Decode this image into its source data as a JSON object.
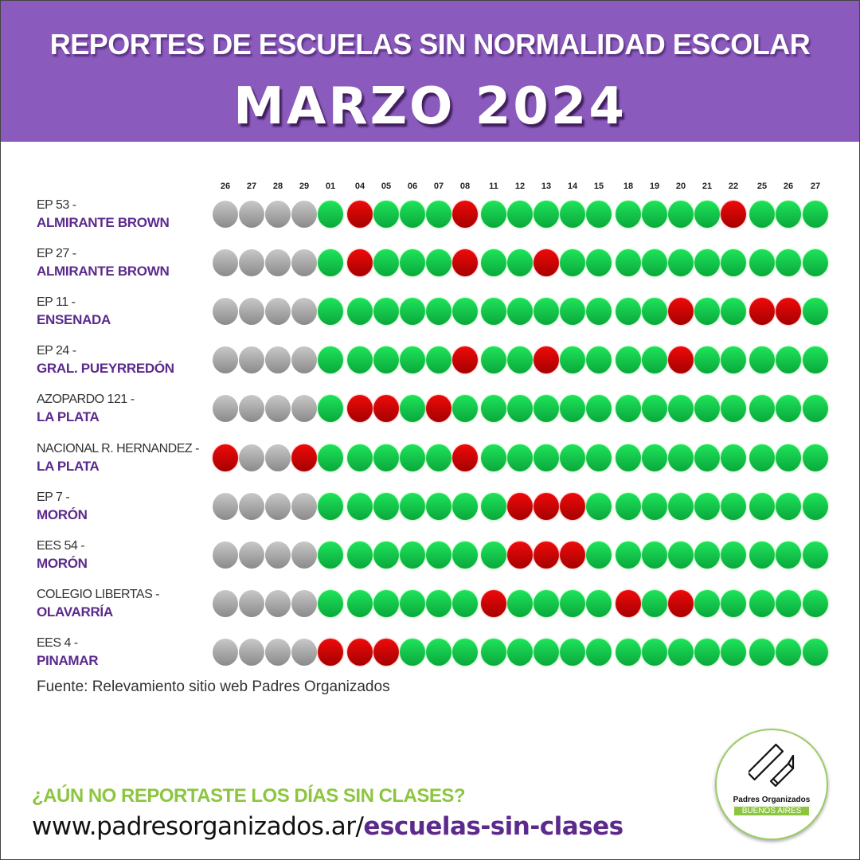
{
  "header": {
    "title": "REPORTES DE ESCUELAS SIN NORMALIDAD ESCOLAR",
    "subtitle": "MARZO 2024",
    "background_color": "#8a5bbd"
  },
  "chart_data": {
    "type": "heatmap",
    "columns": [
      "26",
      "27",
      "28",
      "29",
      "01",
      "04",
      "05",
      "06",
      "07",
      "08",
      "11",
      "12",
      "13",
      "14",
      "15",
      "18",
      "19",
      "20",
      "21",
      "22",
      "25",
      "26",
      "27"
    ],
    "status_colors": {
      "g": "#a9a9a9",
      "v": "#14c94a",
      "r": "#d00000"
    },
    "rows": [
      {
        "name": "EP 53 -",
        "location": "ALMIRANTE BROWN",
        "status": "ggggvrvvvrvvvvvvvvvrvvv"
      },
      {
        "name": "EP 27 -",
        "location": "ALMIRANTE BROWN",
        "status": "ggggvrvvvrvvrvvvvvvvvvv"
      },
      {
        "name": "EP 11 -",
        "location": "ENSENADA",
        "status": "ggggvvvvvvvvvvvvvrvvrrv"
      },
      {
        "name": "EP 24 -",
        "location": "GRAL. PUEYRREDÓN",
        "status": "ggggvvvvvrvvrvvvvrvvvvv"
      },
      {
        "name": "AZOPARDO 121 -",
        "location": "LA PLATA",
        "status": "ggggvrrvrvvvvvvvvvvvvvv"
      },
      {
        "name": "NACIONAL R. HERNANDEZ -",
        "location": "LA PLATA",
        "status": "rggrvvvvvrvvvvvvvvvvvvv"
      },
      {
        "name": "EP 7 -",
        "location": "MORÓN",
        "status": "ggggvvvvvvvrrrvvvvvvvvv"
      },
      {
        "name": "EES 54  -",
        "location": "MORÓN",
        "status": "ggggvvvvvvvrrrvvvvvvvvv"
      },
      {
        "name": "COLEGIO LIBERTAS -",
        "location": "OLAVARRÍA",
        "status": "ggggvvvvvvrvvvvrvrvvvvv"
      },
      {
        "name": "EES 4 -",
        "location": "PINAMAR",
        "status": "ggggrrrvvvvvvvvvvvvvvvv"
      }
    ]
  },
  "source": "Fuente: Relevamiento sitio web Padres Organizados",
  "footer": {
    "cta": "¿AÚN NO REPORTASTE LOS DÍAS SIN CLASES?",
    "url_domain": "www.padresorganizados.ar/",
    "url_path": "escuelas-sin-clases",
    "cta_color": "#8cc63f",
    "accent_color": "#5b2a8c"
  },
  "logo": {
    "name": "Padres Organizados",
    "region": "BUENOS AIRES",
    "icon": "ruler-pencil-icon"
  }
}
